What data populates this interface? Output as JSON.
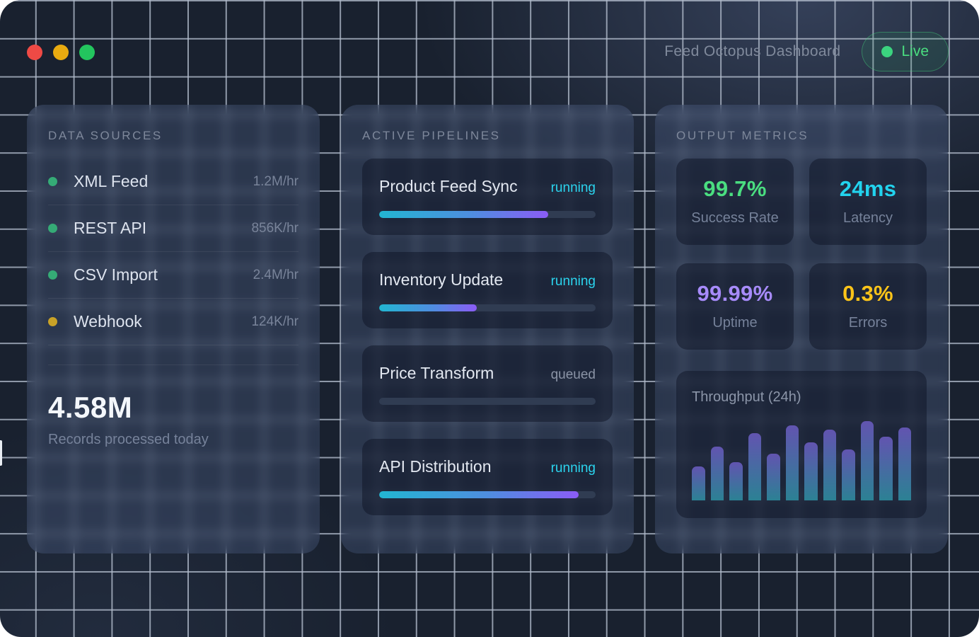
{
  "window": {
    "title": "Feed Octopus Dashboard",
    "live_label": "Live",
    "traffic_lights": {
      "close": "#ef4a45",
      "minimize": "#e9ab10",
      "zoom": "#23c55e"
    },
    "live_color": "#4ade80"
  },
  "data_sources": {
    "header": "DATA SOURCES",
    "items": [
      {
        "name": "XML Feed",
        "rate": "1.2M/hr",
        "dot_color": "#35ab76"
      },
      {
        "name": "REST API",
        "rate": "856K/hr",
        "dot_color": "#35ab76"
      },
      {
        "name": "CSV Import",
        "rate": "2.4M/hr",
        "dot_color": "#35ab76"
      },
      {
        "name": "Webhook",
        "rate": "124K/hr",
        "dot_color": "#c9a227"
      }
    ],
    "total_value": "4.58M",
    "total_caption": "Records processed today"
  },
  "pipelines": {
    "header": "ACTIVE PIPELINES",
    "progress_gradient": [
      "#22b6d2",
      "#8b5cf6"
    ],
    "items": [
      {
        "name": "Product Feed Sync",
        "status": "running",
        "progress_pct": 78
      },
      {
        "name": "Inventory Update",
        "status": "running",
        "progress_pct": 45
      },
      {
        "name": "Price Transform",
        "status": "queued",
        "progress_pct": 0
      },
      {
        "name": "API Distribution",
        "status": "running",
        "progress_pct": 92
      }
    ],
    "status_colors": {
      "running": "#2bd4ee",
      "queued": "#8b94a6"
    }
  },
  "metrics": {
    "header": "OUTPUT METRICS",
    "cards": [
      {
        "value": "99.7%",
        "label": "Success Rate",
        "color": "#4ade80"
      },
      {
        "value": "24ms",
        "label": "Latency",
        "color": "#22d3ee"
      },
      {
        "value": "99.99%",
        "label": "Uptime",
        "color": "#a78bfa"
      },
      {
        "value": "0.3%",
        "label": "Errors",
        "color": "#fcc419"
      }
    ]
  },
  "chart_data": {
    "type": "bar",
    "title": "Throughput (24h)",
    "x_axis_visible": false,
    "y_axis_visible": false,
    "legend": "none",
    "bar_count": 12,
    "values_pct_of_max": [
      43,
      68,
      48,
      85,
      59,
      95,
      73,
      89,
      64,
      100,
      80,
      92
    ],
    "bar_gradient": [
      "#6254b0",
      "#2c8194"
    ]
  }
}
